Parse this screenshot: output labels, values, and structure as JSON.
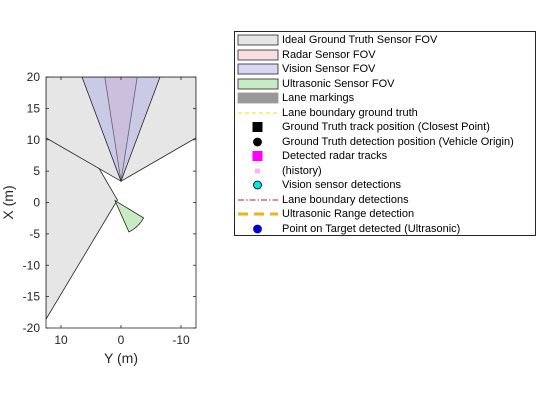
{
  "chart_data": {
    "type": "area",
    "title": "",
    "xlabel": "Y (m)",
    "ylabel": "X (m)",
    "xlim": [
      12.5,
      -12.5
    ],
    "ylim": [
      -20,
      20
    ],
    "x_reversed": true,
    "xticks": [
      10,
      0,
      -10
    ],
    "yticks": [
      20,
      15,
      10,
      5,
      0,
      -5,
      -10,
      -15,
      -20
    ],
    "grid": false,
    "legend_location": "outside right, top",
    "series": [
      {
        "name": "Ideal Ground Truth Sensor FOV",
        "kind": "patches",
        "fill": "#e6e6e6",
        "fill_alpha": 1,
        "edge": "#262626",
        "polygons": [
          [
            [
              0.6,
              0.4
            ],
            [
              12.5,
              -18.6
            ],
            [
              12.5,
              20
            ],
            [
              0.6,
              0.4
            ]
          ],
          [
            [
              0,
              3.4
            ],
            [
              12.5,
              10.3
            ],
            [
              12.5,
              20
            ],
            [
              12.5,
              20
            ],
            [
              -12.5,
              20
            ],
            [
              -12.5,
              10.3
            ],
            [
              0,
              3.4
            ]
          ]
        ]
      },
      {
        "name": "Radar Sensor FOV",
        "kind": "wedge",
        "fill": "#f2b8b8",
        "fill_alpha": 0.45,
        "edge": "#262626",
        "polygons": [
          [
            [
              0,
              3.4
            ],
            [
              -2.7,
              20
            ],
            [
              2.7,
              20
            ],
            [
              0,
              3.4
            ]
          ]
        ]
      },
      {
        "name": "Vision Sensor FOV",
        "kind": "wedge",
        "fill": "#a7a9e6",
        "fill_alpha": 0.45,
        "edge": "#262626",
        "polygons": [
          [
            [
              0,
              3.4
            ],
            [
              -6.5,
              20
            ],
            [
              6.5,
              20
            ],
            [
              0,
              3.4
            ]
          ]
        ]
      },
      {
        "name": "Ultrasonic Sensor FOV",
        "kind": "sector",
        "fill": "#c7ecc3",
        "fill_alpha": 1,
        "edge": "#262626",
        "origin": [
          1.0,
          0.3
        ],
        "radius": 5.5,
        "angle_deg": [
          115,
          150
        ]
      },
      {
        "name": "Lane markings",
        "kind": "patches",
        "fill": "#999999",
        "edge": "#999999",
        "polygons": []
      },
      {
        "name": "Lane boundary ground truth",
        "kind": "line",
        "color": "#e6e600",
        "style": "dashed",
        "points": []
      },
      {
        "name": "Ground Truth track position (Closest Point)",
        "kind": "scatter",
        "marker": "square",
        "color": "#000000",
        "points": []
      },
      {
        "name": "Ground Truth detection position (Vehicle Origin)",
        "kind": "scatter",
        "marker": "circle",
        "color": "#000000",
        "points": []
      },
      {
        "name": "Detected radar tracks",
        "kind": "scatter",
        "marker": "square",
        "color": "#ff00ff",
        "points": []
      },
      {
        "name": "(history)",
        "kind": "scatter",
        "marker": "square-small",
        "color": "#ffb3ff",
        "points": []
      },
      {
        "name": "Vision sensor detections",
        "kind": "scatter",
        "marker": "circle",
        "color": "#00e6e6",
        "edge": "#000000",
        "points": []
      },
      {
        "name": "Lane boundary detections",
        "kind": "line",
        "color": "#a52a2a",
        "style": "dashdot",
        "points": []
      },
      {
        "name": "Ultrasonic Range detection",
        "kind": "line",
        "color": "#edb120",
        "style": "dashed-thick",
        "points": []
      },
      {
        "name": "Point on Target detected (Ultrasonic)",
        "kind": "scatter",
        "marker": "circle",
        "color": "#0000cc",
        "points": []
      }
    ]
  }
}
